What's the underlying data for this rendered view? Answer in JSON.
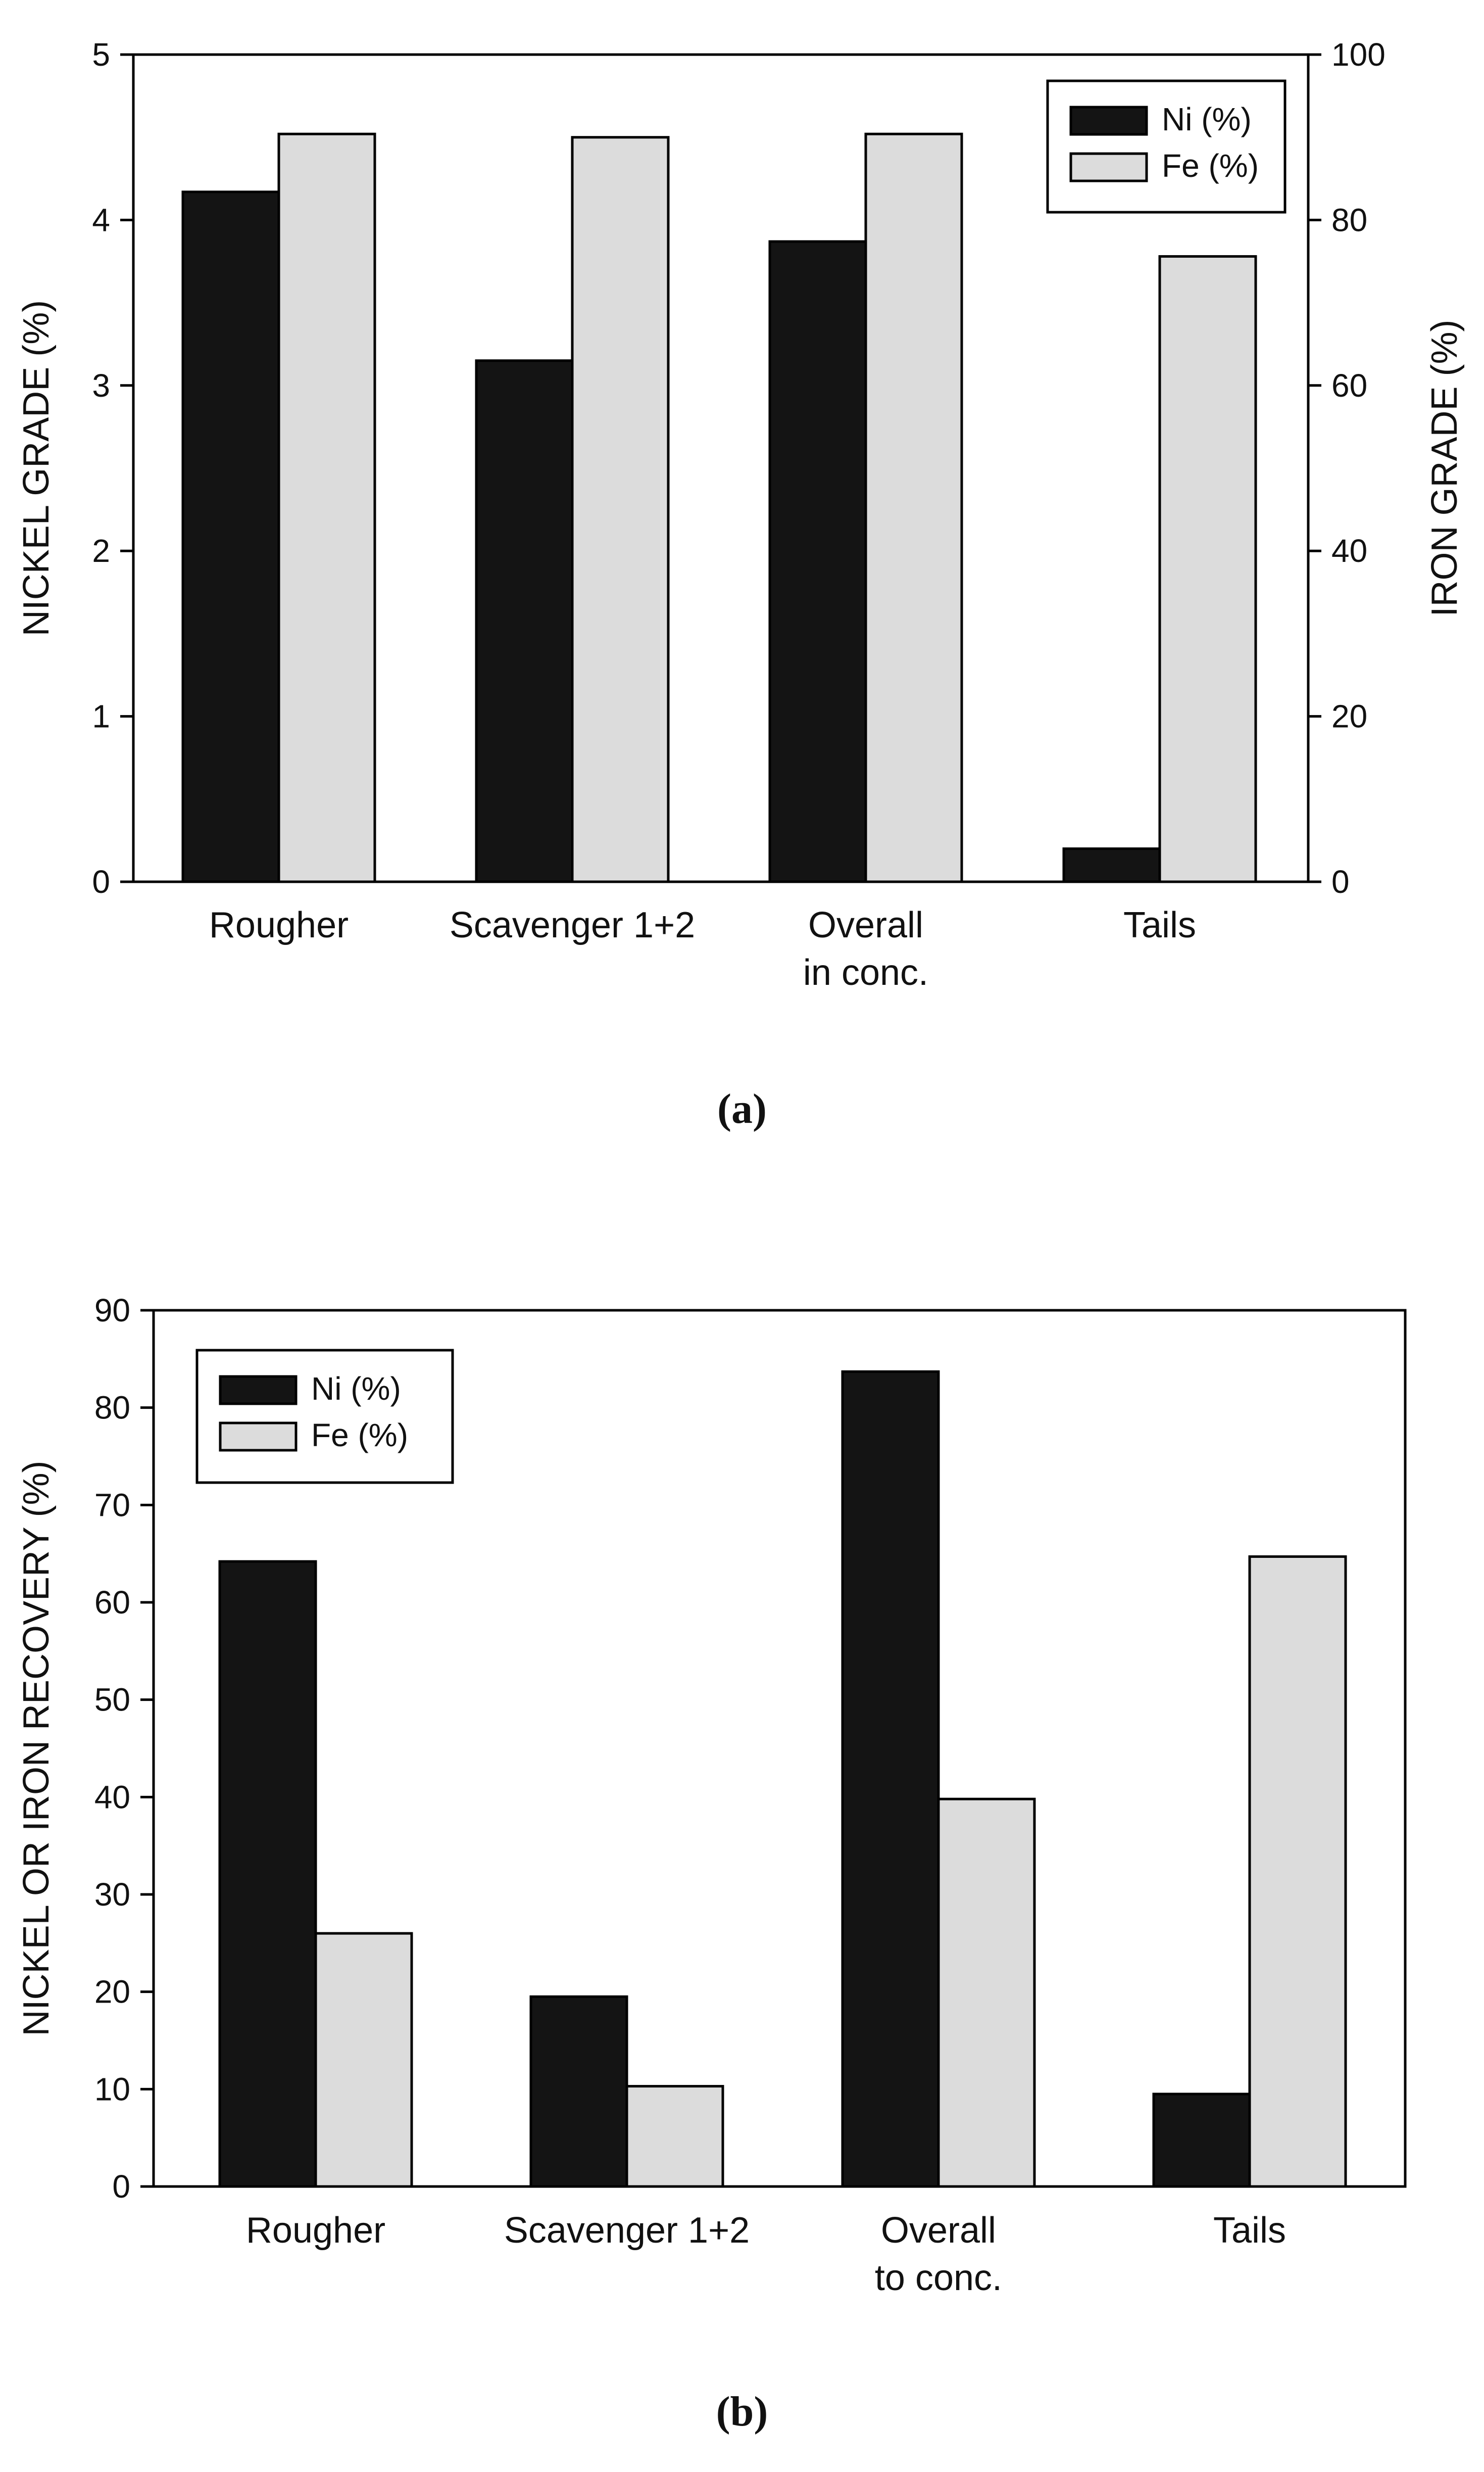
{
  "colors": {
    "ni": "#141414",
    "fe": "#dcdcdc"
  },
  "chart_data": [
    {
      "panel": "(a)",
      "type": "bar",
      "categories": [
        [
          "Rougher"
        ],
        [
          "Scavenger 1+2"
        ],
        [
          "Overall",
          "in conc."
        ],
        [
          "Tails"
        ]
      ],
      "series": [
        {
          "name": "Ni (%)",
          "axis": "left",
          "values": [
            4.17,
            3.15,
            3.87,
            0.2
          ]
        },
        {
          "name": "Fe (%)",
          "axis": "right",
          "values": [
            90.4,
            90.0,
            90.4,
            75.6
          ]
        }
      ],
      "ylabel": "NICKEL GRADE (%)",
      "ylim": [
        0,
        5
      ],
      "yticks": [
        0,
        1,
        2,
        3,
        4,
        5
      ],
      "y2label": "IRON GRADE (%)",
      "y2lim": [
        0,
        100
      ],
      "y2ticks": [
        0,
        20,
        40,
        60,
        80,
        100
      ],
      "legend_position": "top-right",
      "caption": "(a)"
    },
    {
      "panel": "(b)",
      "type": "bar",
      "categories": [
        [
          "Rougher"
        ],
        [
          "Scavenger 1+2"
        ],
        [
          "Overall",
          "to conc."
        ],
        [
          "Tails"
        ]
      ],
      "series": [
        {
          "name": "Ni (%)",
          "values": [
            64.2,
            19.5,
            83.7,
            9.5
          ]
        },
        {
          "name": "Fe (%)",
          "values": [
            26.0,
            10.3,
            39.8,
            64.7
          ]
        }
      ],
      "ylabel": "NICKEL OR IRON RECOVERY (%)",
      "ylim": [
        0,
        90
      ],
      "yticks": [
        0,
        10,
        20,
        30,
        40,
        50,
        60,
        70,
        80,
        90
      ],
      "legend_position": "top-left",
      "caption": "(b)"
    }
  ]
}
